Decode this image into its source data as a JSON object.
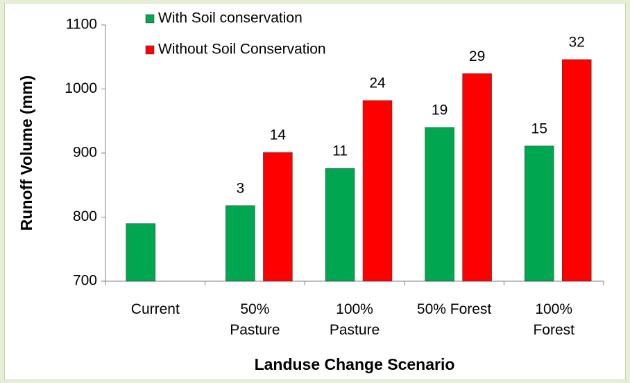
{
  "chart_data": {
    "type": "bar",
    "y_label": "Runoff Volume (mm)",
    "x_label": "Landuse Change Scenario",
    "categories": [
      "Current",
      "50%\nPasture",
      "100%\nPasture",
      "50% Forest",
      "100%\nForest"
    ],
    "series": [
      {
        "name": "With Soil conservation",
        "color": "#00a650",
        "values": [
          790,
          818,
          876,
          940,
          911
        ],
        "annotations": [
          null,
          3,
          11,
          19,
          15
        ]
      },
      {
        "name": "Without Soil Conservation",
        "color": "#ff0000",
        "values": [
          null,
          901,
          982,
          1024,
          1046
        ],
        "annotations": [
          null,
          14,
          24,
          29,
          32
        ]
      }
    ],
    "ylim": [
      700,
      1100
    ],
    "yticks": [
      700,
      800,
      900,
      1000,
      1100
    ],
    "grid": false
  }
}
